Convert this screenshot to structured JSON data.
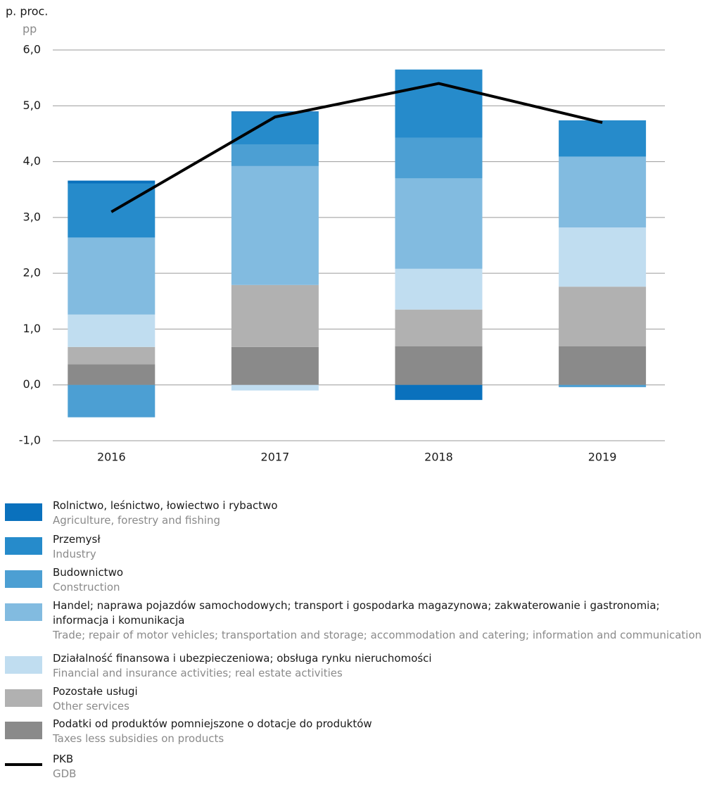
{
  "chart_data": {
    "type": "bar",
    "y_label": "p. proc.",
    "y_label_en": "pp",
    "categories": [
      "2016",
      "2017",
      "2018",
      "2019"
    ],
    "ylim": [
      -1,
      6
    ],
    "yticks": [
      {
        "value": -1,
        "label": "-1,0"
      },
      {
        "value": 0,
        "label": "0,0"
      },
      {
        "value": 1,
        "label": "1,0"
      },
      {
        "value": 2,
        "label": "2,0"
      },
      {
        "value": 3,
        "label": "3,0"
      },
      {
        "value": 4,
        "label": "4,0"
      },
      {
        "value": 5,
        "label": "5,0"
      },
      {
        "value": 6,
        "label": "6,0"
      }
    ],
    "grid": true,
    "series": [
      {
        "name": "Rolnictwo, leśnictwo, łowiectwo i rybactwo",
        "name_en": "Agriculture, forestry and fishing",
        "color": "#0a71bd",
        "values": [
          0.05,
          0.02,
          -0.27,
          0
        ]
      },
      {
        "name": "Przemysł",
        "name_en": "Industry",
        "color": "#268bcb",
        "values": [
          0.97,
          0.57,
          1.22,
          0.65
        ]
      },
      {
        "name": "Budownictwo",
        "name_en": "Construction",
        "color": "#4c9fd3",
        "values": [
          -0.58,
          0.39,
          0.73,
          -0.04
        ]
      },
      {
        "name": "Handel; naprawa pojazdów samochodowych; transport i gospodarka magazynowa; zakwaterowanie i gastronomia; informacja i komunikacja",
        "name_en": "Trade; repair of motor vehicles; transportation and storage; accommodation and catering; information and communication",
        "color": "#82bbe0",
        "values": [
          1.38,
          2.13,
          1.62,
          1.27
        ]
      },
      {
        "name": "Działalność finansowa i ubezpieczeniowa; obsługa rynku nieruchomości",
        "name_en": "Financial and insurance activities; real estate activities",
        "color": "#c0ddf0",
        "values": [
          0.58,
          -0.1,
          0.73,
          1.06
        ]
      },
      {
        "name": "Pozostałe usługi",
        "name_en": "Other services",
        "color": "#b1b1b1",
        "values": [
          0.31,
          1.11,
          0.66,
          1.07
        ]
      },
      {
        "name": "Podatki od produktów pomniejszone o dotacje do produktów",
        "name_en": "Taxes less subsidies on products",
        "color": "#8a8a8a",
        "values": [
          0.37,
          0.68,
          0.69,
          0.69
        ]
      },
      {
        "name": "PKB",
        "name_en": "GDB",
        "type": "line",
        "color": "#000000",
        "values": [
          3.1,
          4.8,
          5.4,
          4.7
        ]
      }
    ]
  }
}
